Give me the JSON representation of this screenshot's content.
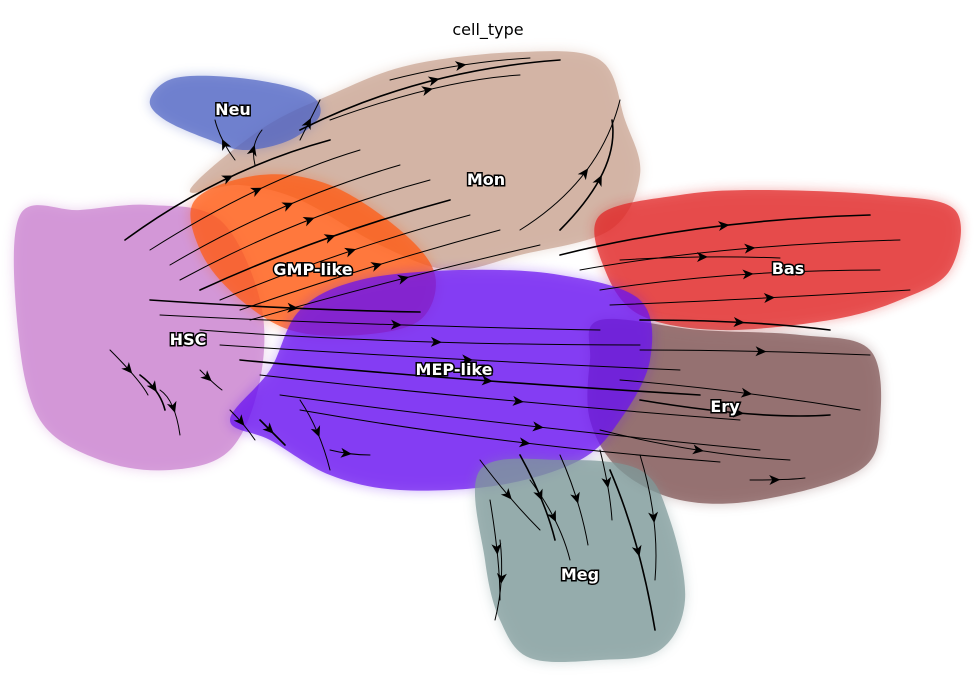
{
  "plot": {
    "title": "cell_type",
    "type": "velocity stream embedding",
    "axes_visible": false
  },
  "clusters": [
    {
      "key": "hsc",
      "label": "HSC",
      "color": "#c97fcf"
    },
    {
      "key": "gmp",
      "label": "GMP-like",
      "color": "#ff5a12"
    },
    {
      "key": "mep",
      "label": "MEP-like",
      "color": "#6a12f0"
    },
    {
      "key": "mon",
      "label": "Mon",
      "color": "#c9a391"
    },
    {
      "key": "neu",
      "label": "Neu",
      "color": "#4f64c4"
    },
    {
      "key": "bas",
      "label": "Bas",
      "color": "#e02424"
    },
    {
      "key": "ery",
      "label": "Ery",
      "color": "#7e5252"
    },
    {
      "key": "meg",
      "label": "Meg",
      "color": "#7e9a9a"
    }
  ],
  "streamline_color": "#000000"
}
